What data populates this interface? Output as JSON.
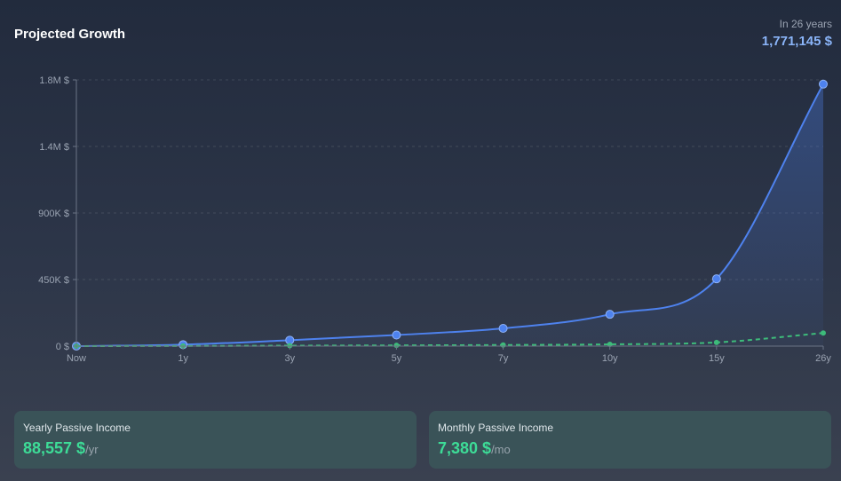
{
  "header": {
    "title": "Projected Growth"
  },
  "summary": {
    "label": "In 26 years",
    "value": "1,771,145 $"
  },
  "chart_data": {
    "type": "line",
    "categories": [
      "Now",
      "1y",
      "3y",
      "5y",
      "7y",
      "10y",
      "15y",
      "26y"
    ],
    "series": [
      {
        "values": [
          0,
          10000,
          40000,
          75000,
          120000,
          215000,
          455000,
          1771145
        ],
        "color": "#4e82ee",
        "fill": true,
        "dashed": false
      },
      {
        "values": [
          0,
          1000,
          3000,
          5000,
          7500,
          12000,
          25000,
          88557
        ],
        "color": "#3dbb7a",
        "fill": false,
        "dashed": true
      }
    ],
    "ylim": [
      0,
      1800000
    ],
    "yticks": [
      {
        "value": 0,
        "label": "0 $"
      },
      {
        "value": 450000,
        "label": "450K $"
      },
      {
        "value": 900000,
        "label": "900K $"
      },
      {
        "value": 1350000,
        "label": "1.4M $"
      },
      {
        "value": 1800000,
        "label": "1.8M $"
      }
    ],
    "grid": true
  },
  "cards": {
    "yearly": {
      "label": "Yearly Passive Income",
      "value": "88,557 $",
      "unit": "/yr"
    },
    "monthly": {
      "label": "Monthly Passive Income",
      "value": "7,380 $",
      "unit": "/mo"
    }
  }
}
